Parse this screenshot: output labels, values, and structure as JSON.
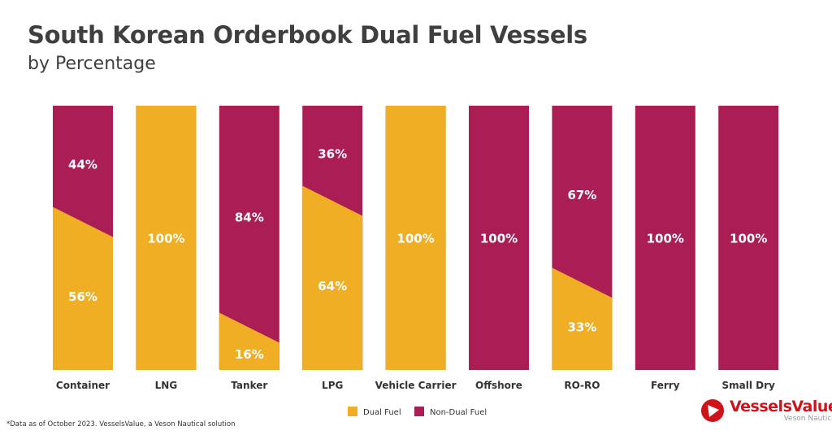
{
  "chart_data": {
    "type": "bar",
    "stacked": true,
    "title": "South Korean Orderbook Dual Fuel Vessels",
    "subtitle": "by Percentage",
    "categories": [
      "Container",
      "LNG",
      "Tanker",
      "LPG",
      "Vehicle Carrier",
      "Offshore",
      "RO-RO",
      "Ferry",
      "Small Dry"
    ],
    "series": [
      {
        "name": "Dual Fuel",
        "color": "#F0AE25",
        "values": [
          56,
          100,
          16,
          64,
          100,
          0,
          33,
          0,
          0
        ]
      },
      {
        "name": "Non-Dual Fuel",
        "color": "#AA1D55",
        "values": [
          44,
          0,
          84,
          36,
          0,
          100,
          67,
          100,
          100
        ]
      }
    ],
    "ylim": [
      0,
      100
    ],
    "grid": false,
    "legend": "bottom-center"
  },
  "footnote": "*Data as of October 2023. VesselsValue, a Veson Nautical solution",
  "logo": {
    "brand": "VesselsValue",
    "sub": "Veson Nautical",
    "color": "#D0121B"
  }
}
